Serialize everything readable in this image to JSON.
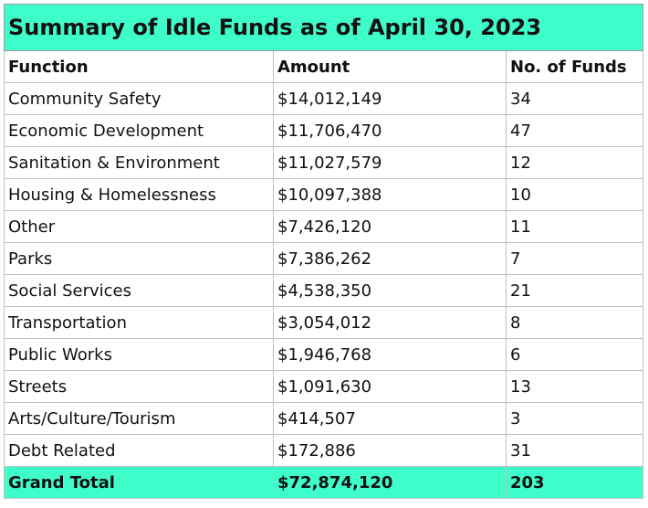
{
  "colors": {
    "accent": "#3ffdcb",
    "border": "#bfbfbf",
    "text": "#111111"
  },
  "table": {
    "title": "Summary of Idle Funds as of April 30, 2023",
    "headers": {
      "function": "Function",
      "amount": "Amount",
      "funds": "No. of Funds"
    },
    "rows": [
      {
        "function": "Community Safety",
        "amount": "$14,012,149",
        "funds": "34"
      },
      {
        "function": "Economic Development",
        "amount": "$11,706,470",
        "funds": "47"
      },
      {
        "function": "Sanitation & Environment",
        "amount": "$11,027,579",
        "funds": "12"
      },
      {
        "function": "Housing & Homelessness",
        "amount": "$10,097,388",
        "funds": "10"
      },
      {
        "function": "Other",
        "amount": "$7,426,120",
        "funds": "11"
      },
      {
        "function": "Parks",
        "amount": "$7,386,262",
        "funds": "7"
      },
      {
        "function": "Social Services",
        "amount": "$4,538,350",
        "funds": "21"
      },
      {
        "function": "Transportation",
        "amount": "$3,054,012",
        "funds": "8"
      },
      {
        "function": "Public Works",
        "amount": "$1,946,768",
        "funds": "6"
      },
      {
        "function": "Streets",
        "amount": "$1,091,630",
        "funds": "13"
      },
      {
        "function": "Arts/Culture/Tourism",
        "amount": "$414,507",
        "funds": "3"
      },
      {
        "function": "Debt Related",
        "amount": "$172,886",
        "funds": "31"
      }
    ],
    "total": {
      "function": "Grand Total",
      "amount": "$72,874,120",
      "funds": "203"
    }
  }
}
